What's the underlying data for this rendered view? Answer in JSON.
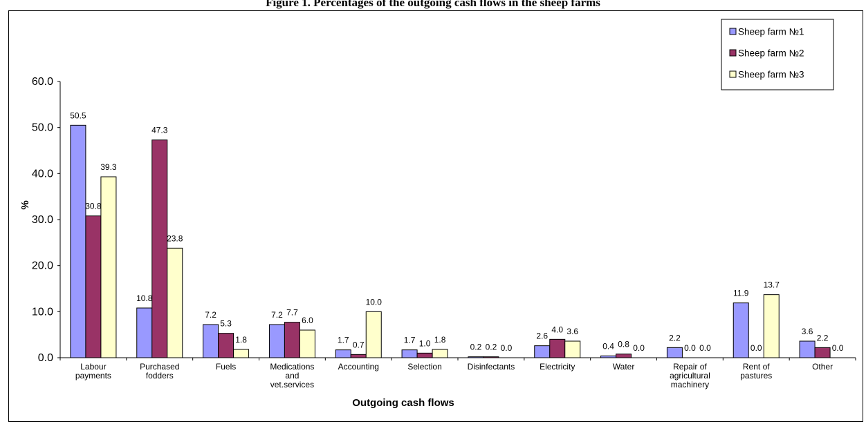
{
  "figure": {
    "title": "Figure 1. Percentages of the outgoing cash flows in the sheep farms"
  },
  "chart_data": {
    "type": "bar",
    "title": "Figure 1. Percentages of the outgoing cash flows in the sheep farms",
    "xlabel": "Outgoing cash flows",
    "ylabel": "%",
    "ylim": [
      0,
      60
    ],
    "yticks": [
      "0.0",
      "10.0",
      "20.0",
      "30.0",
      "40.0",
      "50.0",
      "60.0"
    ],
    "grid": false,
    "legend_position": "top-right",
    "categories": [
      "Labour payments",
      "Purchased fodders",
      "Fuels",
      "Medications and vet.services",
      "Accounting",
      "Selection",
      "Disinfectants",
      "Electricity",
      "Water",
      "Repair of agricultural machinery",
      "Rent of pastures",
      "Other"
    ],
    "category_lines": [
      [
        "Labour",
        "payments"
      ],
      [
        "Purchased",
        "fodders"
      ],
      [
        "Fuels"
      ],
      [
        "Medications",
        "and",
        "vet.services"
      ],
      [
        "Accounting"
      ],
      [
        "Selection"
      ],
      [
        "Disinfectants"
      ],
      [
        "Electricity"
      ],
      [
        "Water"
      ],
      [
        "Repair of",
        "agricultural",
        "machinery"
      ],
      [
        "Rent of",
        "pastures"
      ],
      [
        "Other"
      ]
    ],
    "series": [
      {
        "name": "Sheep farm №1",
        "color": "#9999FF",
        "values": [
          50.5,
          10.8,
          7.2,
          7.2,
          1.7,
          1.7,
          0.2,
          2.6,
          0.4,
          2.2,
          11.9,
          3.6
        ]
      },
      {
        "name": "Sheep farm №2",
        "color": "#993366",
        "values": [
          30.8,
          47.3,
          5.3,
          7.7,
          0.7,
          1.0,
          0.2,
          4.0,
          0.8,
          0.0,
          0.0,
          2.2
        ]
      },
      {
        "name": "Sheep farm №3",
        "color": "#FFFFCC",
        "values": [
          39.3,
          23.8,
          1.8,
          6.0,
          10.0,
          1.8,
          0.0,
          3.6,
          0.0,
          0.0,
          13.7,
          0.0
        ]
      }
    ],
    "data_labels": [
      [
        "50.5",
        "10.8",
        "7.2",
        "7.2",
        "1.7",
        "1.7",
        "0.2",
        "2.6",
        "0.4",
        "2.2",
        "11.9",
        "3.6"
      ],
      [
        "30.8",
        "47.3",
        "5.3",
        "7.7",
        "0.7",
        "1.0",
        "0.2",
        "4.0",
        "0.8",
        "0.0",
        "0.0",
        "2.2"
      ],
      [
        "39.3",
        "23.8",
        "1.8",
        "6.0",
        "10.0",
        "1.8",
        "0.0",
        "3.6",
        "0.0",
        "0.0",
        "13.7",
        "0.0"
      ]
    ]
  }
}
